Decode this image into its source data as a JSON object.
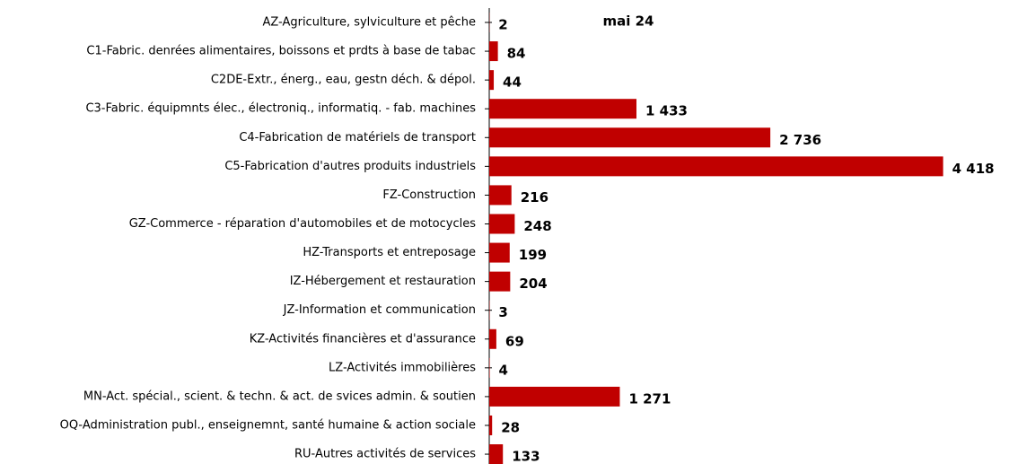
{
  "chart_data": {
    "type": "barh",
    "categories": [
      "AZ-Agriculture, sylviculture et pêche",
      "C1-Fabric. denrées alimentaires, boissons et  prdts à base de tabac",
      "C2DE-Extr., énerg., eau, gestn déch. & dépol.",
      "C3-Fabric. équipmnts élec., électroniq., informatiq. - fab. machines",
      "C4-Fabrication de matériels de transport",
      "C5-Fabrication d'autres produits industriels",
      "FZ-Construction",
      "GZ-Commerce - réparation d'automobiles et de motocycles",
      "HZ-Transports et entreposage",
      "IZ-Hébergement et restauration",
      "JZ-Information et communication",
      "KZ-Activités financières et d'assurance",
      "LZ-Activités immobilières",
      "MN-Act. spécial., scient. & techn. & act. de svices admin. & soutien",
      "OQ-Administration publ., enseignemnt, santé humaine & action sociale",
      "RU-Autres activités de services"
    ],
    "series": [
      {
        "name": "mai 24",
        "color": "#c00000",
        "values": [
          2,
          84,
          44,
          1433,
          2736,
          4418,
          216,
          248,
          199,
          204,
          3,
          69,
          4,
          1271,
          28,
          133
        ],
        "value_labels": [
          "2",
          "84",
          "44",
          "1 433",
          "2 736",
          "4 418",
          "216",
          "248",
          "199",
          "204",
          "3",
          "69",
          "4",
          "1 271",
          "28",
          "133"
        ]
      }
    ],
    "xlim": [
      0,
      4500
    ]
  }
}
